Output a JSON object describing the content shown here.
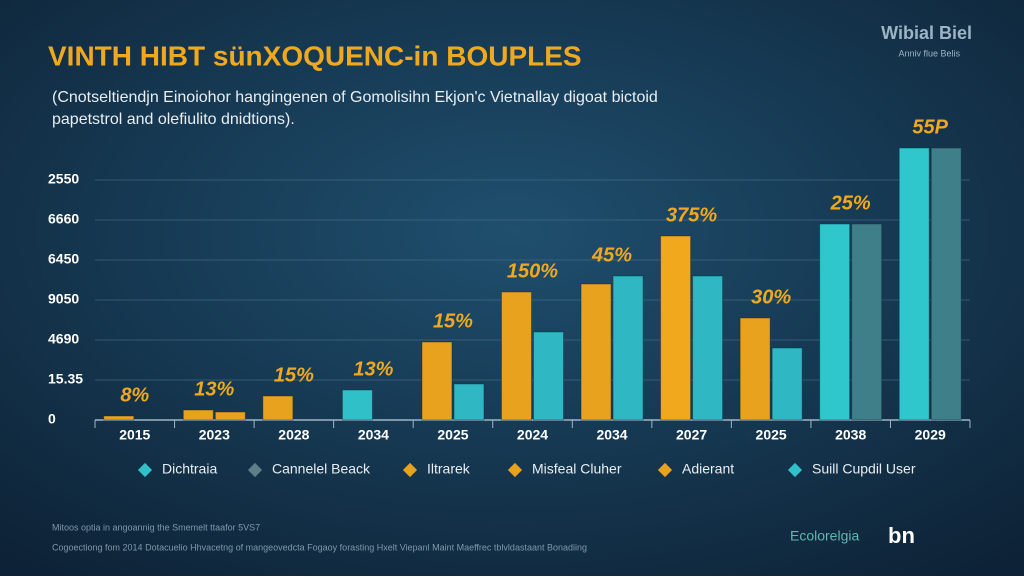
{
  "chart_data": {
    "type": "bar",
    "title": "VINTH HIBT sünXOQUENC-in BOUPLES",
    "subtitle_lines": [
      "(Cnotseltiendjn Einoiohor hangingenen of Gomolisihn Ekjon'c Vietnallay digoat bictoid",
      "papetstrol and olefiulito dnidtions)."
    ],
    "brand": "Wibial Biel",
    "brand_sub": "Anniv flue Belis",
    "categories": [
      "2015",
      "2023",
      "2028",
      "2034",
      "2025",
      "2024",
      "2034",
      "2027",
      "2025",
      "2038",
      "2029"
    ],
    "ylim": [
      0,
      7
    ],
    "yticks": [
      {
        "value": 0,
        "label": "0"
      },
      {
        "value": 1,
        "label": "15.35"
      },
      {
        "value": 2,
        "label": "4690"
      },
      {
        "value": 3,
        "label": "9050"
      },
      {
        "value": 4,
        "label": "6450"
      },
      {
        "value": 5,
        "label": "6660"
      },
      {
        "value": 6,
        "label": "2550"
      }
    ],
    "grid": true,
    "series": [
      {
        "values": [
          0.1,
          0.25,
          0.6,
          0.75,
          1.95,
          3.2,
          3.4,
          4.6,
          2.55,
          4.9,
          6.8
        ],
        "colors": [
          "#e8a21e",
          "#e8a21e",
          "#e8a21e",
          "#2fc0c8",
          "#e8a21e",
          "#e8a21e",
          "#e8a21e",
          "#f2a81c",
          "#e8a21e",
          "#2fc6cc",
          "#2fc6cc"
        ]
      },
      {
        "values": [
          null,
          0.2,
          null,
          null,
          0.9,
          2.2,
          3.6,
          3.6,
          1.8,
          4.9,
          6.8
        ],
        "colors": [
          "#2fb8c4",
          "#e8a21e",
          "#2fb8c4",
          "#2fb8c4",
          "#2fb8c4",
          "#2fb8c4",
          "#2fb8c4",
          "#2fb8c4",
          "#2fb8c4",
          "#3f7f8a",
          "#3f7f8a"
        ]
      }
    ],
    "bar_labels": [
      "8%",
      "13%",
      "15%",
      "13%",
      "15%",
      "150%",
      "45%",
      "375%",
      "30%",
      "25%",
      "55P"
    ],
    "legend": [
      {
        "name": "Dichtraia",
        "color": "#2fc0c8"
      },
      {
        "name": "Cannelel Beack",
        "color": "#5f7f88"
      },
      {
        "name": "Iltrarek",
        "color": "#e8a21e"
      },
      {
        "name": "Misfeal Cluher",
        "color": "#e8a21e"
      },
      {
        "name": "Adierant",
        "color": "#e8a21e"
      },
      {
        "name": "Suill Cupdil User",
        "color": "#2fc0c8"
      }
    ],
    "footer_lines": [
      "Mitoos optia in angoannig the Smemelt ttaafor 5VS7",
      "Cogoectiong fom 2014 Dotacuelio Hhvacetng of mangeovedcta Fogaoy forasting Hxelt Viepanl Maint Maeffrec tblvldastaant Bonadiing"
    ],
    "footer_logos": [
      "Ecolorelgia",
      "bn"
    ]
  }
}
